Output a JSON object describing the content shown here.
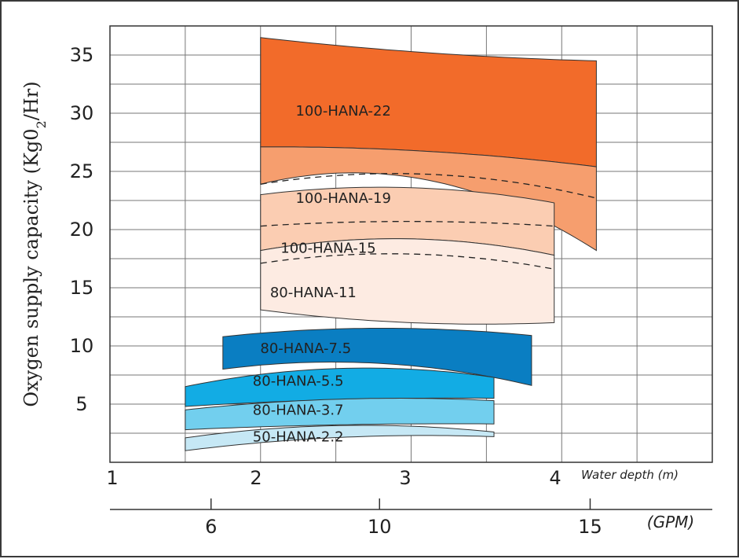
{
  "chart_data": {
    "type": "area",
    "title": "",
    "ylabel": "Oxygen supply capacity (Kg0",
    "ylabel_sub": "2",
    "ylabel_tail": "/Hr)",
    "yticks": [
      "35",
      "30",
      "25",
      "20",
      "15",
      "10",
      "5"
    ],
    "ylim": [
      0,
      37.5
    ],
    "x_depth": {
      "label": "Water depth (m)",
      "ticks": [
        "1",
        "2",
        "3",
        "4"
      ],
      "range": [
        1,
        5
      ]
    },
    "x_gpm": {
      "label": "(GPM)",
      "ticks": [
        "6",
        "10",
        "15"
      ],
      "range": [
        3.6,
        17.9
      ]
    },
    "series": [
      {
        "name": "100-HANA-22",
        "color": "#f26b2a",
        "x": [
          2,
          3,
          4.23
        ],
        "top": [
          36.5,
          35.3,
          34.5
        ],
        "bottom": [
          27.1,
          26.8,
          25.4
        ]
      },
      {
        "name": "100-HANA-19",
        "color": "#f69e6e",
        "x": [
          2,
          3,
          4.23
        ],
        "top": [
          27.1,
          26.8,
          25.4
        ],
        "bottom": [
          23.9,
          24.5,
          18.2
        ]
      },
      {
        "name": "100-HANA-15",
        "color": "#fbcdb2",
        "x": [
          2,
          3,
          3.95
        ],
        "top": [
          23.0,
          23.6,
          22.3
        ],
        "bottom": [
          18.2,
          19.2,
          17.8
        ]
      },
      {
        "name": "80-HANA-11",
        "color": "#fdebe2",
        "x": [
          2,
          3,
          3.95
        ],
        "top": [
          18.2,
          19.2,
          17.8
        ],
        "bottom": [
          13.1,
          12.0,
          12.0
        ]
      },
      {
        "name": "80-HANA-7.5",
        "color": "#0a7ec2",
        "x": [
          1.75,
          3,
          3.8
        ],
        "top": [
          10.8,
          11.5,
          10.9
        ],
        "bottom": [
          8.0,
          8.3,
          6.6
        ]
      },
      {
        "name": "80-HANA-5.5",
        "color": "#12ace4",
        "x": [
          1.5,
          3,
          3.55
        ],
        "top": [
          6.5,
          8.0,
          7.3
        ],
        "bottom": [
          4.8,
          5.5,
          5.5
        ]
      },
      {
        "name": "80-HANA-3.7",
        "color": "#72cfee",
        "x": [
          1.5,
          3,
          3.55
        ],
        "top": [
          4.5,
          5.5,
          5.3
        ],
        "bottom": [
          2.8,
          3.3,
          3.3
        ]
      },
      {
        "name": "50-HANA-2.2",
        "color": "#c6e8f5",
        "x": [
          1.5,
          3,
          3.55
        ],
        "top": [
          2.1,
          3.1,
          2.6
        ],
        "bottom": [
          1.0,
          2.3,
          2.2
        ]
      }
    ],
    "dashed_lines": [
      {
        "x": [
          2,
          3,
          4.23
        ],
        "y": [
          23.9,
          24.8,
          22.7
        ]
      },
      {
        "x": [
          2,
          3,
          3.95
        ],
        "y": [
          20.3,
          20.7,
          20.3
        ]
      },
      {
        "x": [
          2,
          3,
          3.95
        ],
        "y": [
          17.1,
          17.9,
          16.6
        ]
      }
    ],
    "grid": true
  }
}
